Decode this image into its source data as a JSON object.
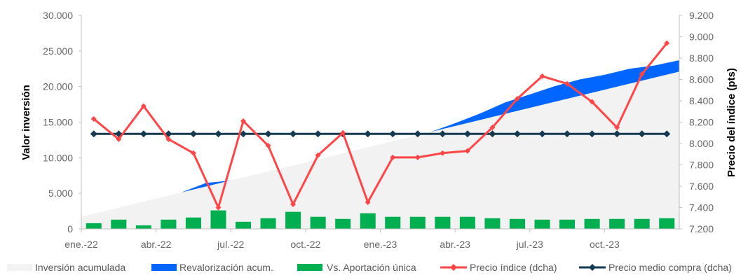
{
  "chart_data": {
    "type": "line",
    "ylabel_left": "Valor inversión",
    "ylabel_right": "Precio del índice (pts)",
    "ylim_left": [
      0,
      30000
    ],
    "ylim_right": [
      7200,
      9200
    ],
    "yticks_left": [
      "0",
      "5.000",
      "10.000",
      "15.000",
      "20.000",
      "25.000",
      "30.000"
    ],
    "yticks_right": [
      "7.200",
      "7.400",
      "7.600",
      "7.800",
      "8.000",
      "8.200",
      "8.400",
      "8.600",
      "8.800",
      "9.000",
      "9.200"
    ],
    "x_labels": [
      {
        "month": 0,
        "label": "ene.-22"
      },
      {
        "month": 3,
        "label": "abr.-22"
      },
      {
        "month": 6,
        "label": "jul.-22"
      },
      {
        "month": 9,
        "label": "oct.-22"
      },
      {
        "month": 12,
        "label": "ene.-23"
      },
      {
        "month": 15,
        "label": "abr.-23"
      },
      {
        "month": 18,
        "label": "jul.-23"
      },
      {
        "month": 21,
        "label": "oct.-23"
      }
    ],
    "grid": false,
    "legend_position": "bottom",
    "series": [
      {
        "name": "Inversión acumulada",
        "type": "area",
        "axis": "left",
        "color": "#f2f2f2",
        "values": [
          1700,
          2550,
          3400,
          4250,
          5100,
          5950,
          6800,
          7650,
          8500,
          9350,
          10200,
          11050,
          11900,
          12750,
          13600,
          14450,
          15300,
          16150,
          17000,
          17850,
          18700,
          19550,
          20400,
          21250,
          22100
        ]
      },
      {
        "name": "Revalorización acum.",
        "type": "stacked-area",
        "axis": "left",
        "color": "#0066ff",
        "values": [
          0,
          0,
          0,
          0,
          0,
          500,
          0,
          0,
          0,
          0,
          0,
          0,
          0,
          0,
          0,
          400,
          900,
          1600,
          1900,
          2200,
          2300,
          2100,
          2100,
          1700,
          1600
        ]
      },
      {
        "name": "Vs. Aportación única",
        "type": "bar",
        "axis": "left",
        "color": "#00b050",
        "values": [
          800,
          1300,
          500,
          1300,
          1600,
          2600,
          1000,
          1500,
          2400,
          1700,
          1400,
          2200,
          1700,
          1700,
          1700,
          1700,
          1500,
          1400,
          1300,
          1300,
          1400,
          1400,
          1400,
          1500
        ]
      },
      {
        "name": "Precio índice (dcha)",
        "type": "line",
        "axis": "right",
        "color": "#ff4545",
        "values": [
          8230,
          8040,
          8350,
          8040,
          7910,
          7400,
          8210,
          7980,
          7430,
          7890,
          8100,
          7450,
          7870,
          7870,
          7910,
          7930,
          8150,
          8420,
          8630,
          8560,
          8390,
          8150,
          8650,
          8940
        ]
      },
      {
        "name": "Precio medio compra (dcha)",
        "type": "line",
        "axis": "right",
        "color": "#143a52",
        "values": [
          8090,
          8090,
          8090,
          8090,
          8090,
          8090,
          8090,
          8090,
          8090,
          8090,
          8090,
          8090,
          8090,
          8090,
          8090,
          8090,
          8090,
          8090,
          8090,
          8090,
          8090,
          8090,
          8090,
          8090
        ]
      }
    ]
  }
}
